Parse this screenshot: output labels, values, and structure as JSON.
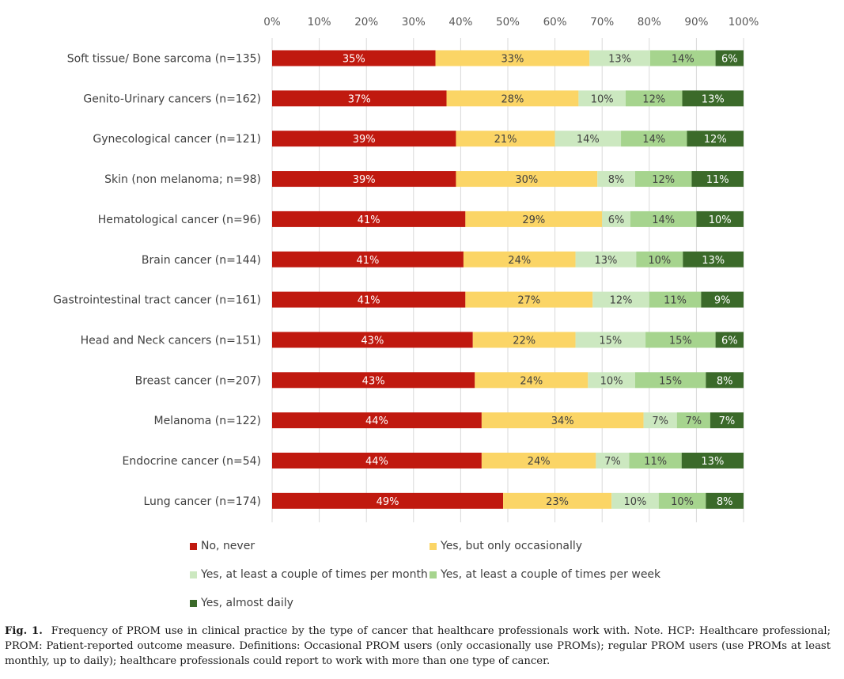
{
  "chart_data": {
    "type": "bar",
    "orientation": "horizontal",
    "stacked": true,
    "x_ticks": [
      "0%",
      "10%",
      "20%",
      "30%",
      "40%",
      "50%",
      "60%",
      "70%",
      "80%",
      "90%",
      "100%"
    ],
    "xlim": [
      0,
      100
    ],
    "grid": true,
    "legend_position": "bottom",
    "categories": [
      "Soft tissue/ Bone sarcoma (n=135)",
      "Genito-Urinary cancers (n=162)",
      "Gynecological cancer (n=121)",
      "Skin (non melanoma; n=98)",
      "Hematological cancer (n=96)",
      "Brain cancer (n=144)",
      "Gastrointestinal tract cancer (n=161)",
      "Head and Neck cancers (n=151)",
      "Breast cancer (n=207)",
      "Melanoma (n=122)",
      "Endocrine cancer (n=54)",
      "Lung cancer (n=174)"
    ],
    "series": [
      {
        "name": "No, never",
        "color": "#c0190f",
        "values": [
          35,
          37,
          39,
          39,
          41,
          41,
          41,
          43,
          43,
          44,
          44,
          49
        ],
        "labels": [
          "35%",
          "37%",
          "39%",
          "39%",
          "41%",
          "41%",
          "41%",
          "43%",
          "43%",
          "44%",
          "44%",
          "49%"
        ]
      },
      {
        "name": "Yes, but only occasionally",
        "color": "#fbd566",
        "values": [
          33,
          28,
          21,
          30,
          29,
          24,
          27,
          22,
          24,
          34,
          24,
          23
        ],
        "labels": [
          "33%",
          "28%",
          "21%",
          "30%",
          "29%",
          "24%",
          "27%",
          "22%",
          "24%",
          "34%",
          "24%",
          "23%"
        ]
      },
      {
        "name": "Yes, at least a couple of times per month",
        "color": "#cce8c0",
        "values": [
          13,
          10,
          14,
          8,
          6,
          13,
          12,
          15,
          10,
          7,
          7,
          10
        ],
        "labels": [
          "13%",
          "10%",
          "14%",
          "8%",
          "6%",
          "13%",
          "12%",
          "15%",
          "10%",
          "7%",
          "7%",
          "10%"
        ]
      },
      {
        "name": "Yes, at least a couple of times per week",
        "color": "#a6d48e",
        "values": [
          14,
          12,
          14,
          12,
          14,
          10,
          11,
          15,
          15,
          7,
          11,
          10
        ],
        "labels": [
          "14%",
          "12%",
          "14%",
          "12%",
          "14%",
          "10%",
          "11%",
          "15%",
          "15%",
          "7%",
          "11%",
          "10%"
        ]
      },
      {
        "name": "Yes, almost daily",
        "color": "#3b6a2a",
        "values": [
          6,
          13,
          12,
          11,
          10,
          13,
          9,
          6,
          8,
          7,
          13,
          8
        ],
        "labels": [
          "6%",
          "13%",
          "12%",
          "11%",
          "10%",
          "13%",
          "9%",
          "6%",
          "8%",
          "7%",
          "13%",
          "8%"
        ]
      }
    ]
  },
  "caption": {
    "label": "Fig. 1.",
    "text": "Frequency of PROM use in clinical practice by the type of cancer that healthcare professionals work with. Note. HCP: Healthcare professional; PROM: Patient-reported outcome measure. Definitions: Occasional PROM users (only occasionally use PROMs); regular PROM users (use PROMs at least monthly, up to daily); healthcare professionals could report to work with more than one type of cancer."
  }
}
